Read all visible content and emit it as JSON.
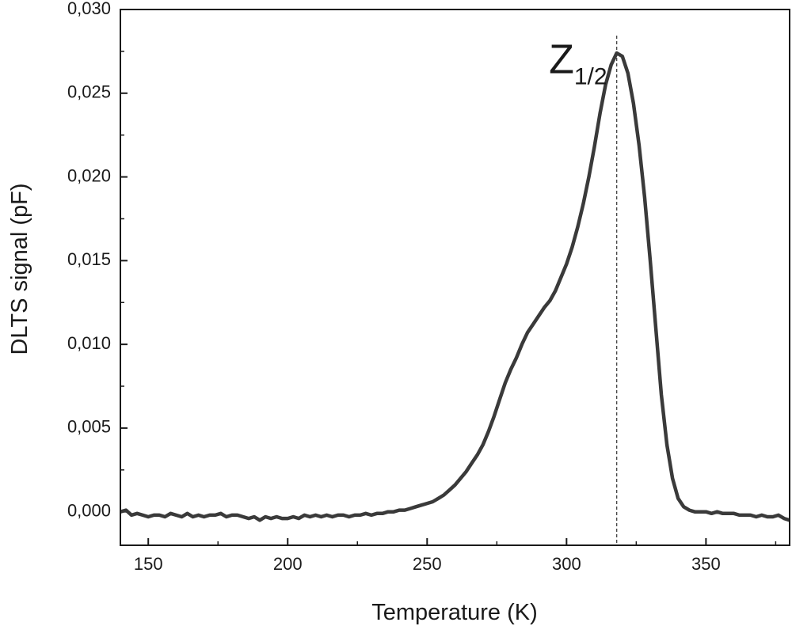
{
  "chart_data": {
    "type": "line",
    "xlabel": "Temperature (K)",
    "ylabel": "DLTS signal (pF)",
    "xlim": [
      140,
      380
    ],
    "ylim": [
      -0.002,
      0.03
    ],
    "x_ticks": [
      150,
      200,
      250,
      300,
      350
    ],
    "x_tick_labels": [
      "150",
      "200",
      "250",
      "300",
      "350"
    ],
    "y_ticks": [
      0.0,
      0.005,
      0.01,
      0.015,
      0.02,
      0.025,
      0.03
    ],
    "y_tick_labels": [
      "0,000",
      "0,005",
      "0,010",
      "0,015",
      "0,020",
      "0,025",
      "0,030"
    ],
    "grid": false,
    "line_color": "#3a3a3a",
    "annotation": {
      "main": "Z",
      "subscript": "1/2",
      "x": 313,
      "y": 0.0262
    },
    "peak_marker": {
      "x": 318,
      "style": "dashed vertical line"
    },
    "series": [
      {
        "x": [
          140,
          142,
          144,
          146,
          148,
          150,
          152,
          154,
          156,
          158,
          160,
          162,
          164,
          166,
          168,
          170,
          172,
          174,
          176,
          178,
          180,
          182,
          184,
          186,
          188,
          190,
          192,
          194,
          196,
          198,
          200,
          202,
          204,
          206,
          208,
          210,
          212,
          214,
          216,
          218,
          220,
          222,
          224,
          226,
          228,
          230,
          232,
          234,
          236,
          238,
          240,
          242,
          244,
          246,
          248,
          250,
          252,
          254,
          256,
          258,
          260,
          262,
          264,
          266,
          268,
          270,
          272,
          274,
          276,
          278,
          280,
          282,
          284,
          286,
          288,
          290,
          292,
          294,
          296,
          298,
          300,
          302,
          304,
          306,
          308,
          310,
          312,
          314,
          316,
          318,
          320,
          322,
          324,
          326,
          328,
          330,
          332,
          334,
          336,
          338,
          340,
          342,
          344,
          346,
          348,
          350,
          352,
          354,
          356,
          358,
          360,
          362,
          364,
          366,
          368,
          370,
          372,
          374,
          376,
          378,
          380
        ],
        "y": [
          0.0,
          0.0001,
          -0.0002,
          -0.0001,
          -0.0002,
          -0.0003,
          -0.0002,
          -0.0002,
          -0.0003,
          -0.0001,
          -0.0002,
          -0.0003,
          -0.0001,
          -0.0003,
          -0.0002,
          -0.0003,
          -0.0002,
          -0.0002,
          -0.0001,
          -0.0003,
          -0.0002,
          -0.0002,
          -0.0003,
          -0.0004,
          -0.0003,
          -0.0005,
          -0.0003,
          -0.0004,
          -0.0003,
          -0.0004,
          -0.0004,
          -0.0003,
          -0.0004,
          -0.0002,
          -0.0003,
          -0.0002,
          -0.0003,
          -0.0002,
          -0.0003,
          -0.0002,
          -0.0002,
          -0.0003,
          -0.0002,
          -0.0002,
          -0.0001,
          -0.0002,
          -0.0001,
          -0.0001,
          0.0,
          0.0,
          0.0001,
          0.0001,
          0.0002,
          0.0003,
          0.0004,
          0.0005,
          0.0006,
          0.0008,
          0.001,
          0.0013,
          0.0016,
          0.002,
          0.0024,
          0.0029,
          0.0034,
          0.004,
          0.0048,
          0.0057,
          0.0067,
          0.0077,
          0.0085,
          0.0092,
          0.01,
          0.0107,
          0.0112,
          0.0117,
          0.0122,
          0.0126,
          0.0132,
          0.014,
          0.0148,
          0.0158,
          0.017,
          0.0184,
          0.02,
          0.0218,
          0.0238,
          0.0255,
          0.0267,
          0.0274,
          0.0272,
          0.0262,
          0.0244,
          0.0219,
          0.0188,
          0.015,
          0.011,
          0.007,
          0.004,
          0.002,
          0.0008,
          0.0003,
          0.0001,
          0.0,
          0.0,
          0.0,
          -0.0001,
          0.0,
          -0.0001,
          -0.0001,
          -0.0001,
          -0.0002,
          -0.0002,
          -0.0002,
          -0.0003,
          -0.0002,
          -0.0003,
          -0.0003,
          -0.0002,
          -0.0004,
          -0.0005
        ]
      }
    ]
  }
}
